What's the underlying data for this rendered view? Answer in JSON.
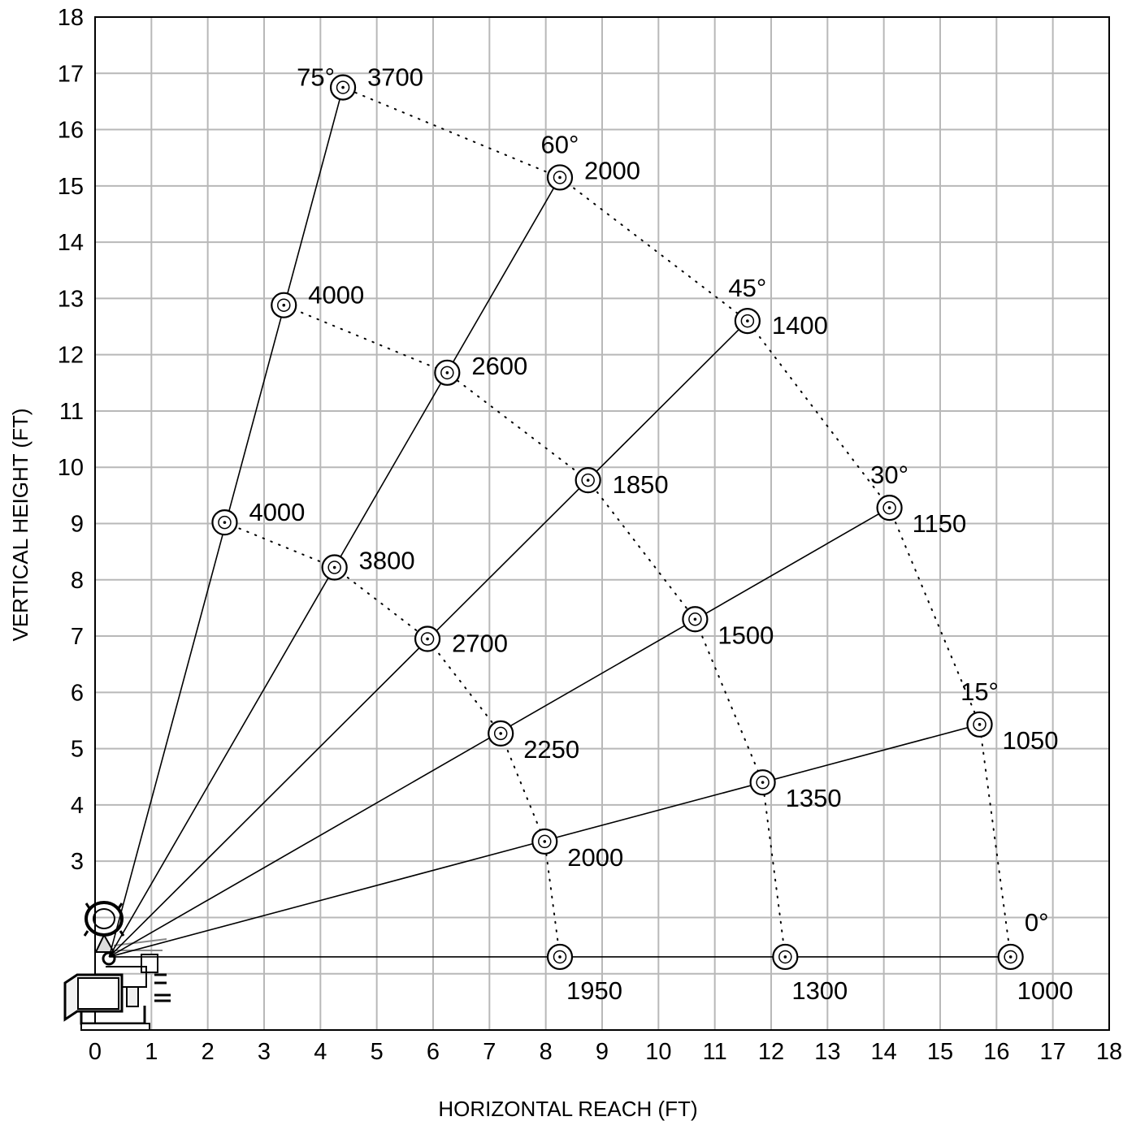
{
  "chart_data": {
    "type": "scatter",
    "title": "",
    "xlabel": "HORIZONTAL REACH (FT)",
    "ylabel": "VERTICAL HEIGHT (FT)",
    "xlim": [
      0,
      18
    ],
    "ylim": [
      0,
      18
    ],
    "x_ticks": [
      "0",
      "1",
      "2",
      "3",
      "4",
      "5",
      "6",
      "7",
      "8",
      "9",
      "10",
      "11",
      "12",
      "13",
      "14",
      "15",
      "16",
      "17",
      "18"
    ],
    "y_ticks": [
      "3",
      "4",
      "5",
      "6",
      "7",
      "8",
      "9",
      "10",
      "11",
      "12",
      "13",
      "14",
      "15",
      "16",
      "17",
      "18"
    ],
    "grid": true,
    "origin": {
      "x": 0.25,
      "y": 1.3
    },
    "booms": [
      {
        "angle": "0°",
        "points": [
          {
            "x": 8.25,
            "y": 1.3,
            "capacity": "1950"
          },
          {
            "x": 12.25,
            "y": 1.3,
            "capacity": "1300"
          },
          {
            "x": 16.25,
            "y": 1.3,
            "capacity": "1000"
          }
        ]
      },
      {
        "angle": "15°",
        "points": [
          {
            "x": 7.98,
            "y": 3.35,
            "capacity": "2000"
          },
          {
            "x": 11.85,
            "y": 4.4,
            "capacity": "1350"
          },
          {
            "x": 15.7,
            "y": 5.43,
            "capacity": "1050"
          }
        ]
      },
      {
        "angle": "30°",
        "points": [
          {
            "x": 7.2,
            "y": 5.27,
            "capacity": "2250"
          },
          {
            "x": 10.65,
            "y": 7.3,
            "capacity": "1500"
          },
          {
            "x": 14.1,
            "y": 9.28,
            "capacity": "1150"
          }
        ]
      },
      {
        "angle": "45°",
        "points": [
          {
            "x": 5.9,
            "y": 6.95,
            "capacity": "2700"
          },
          {
            "x": 8.75,
            "y": 9.77,
            "capacity": "1850"
          },
          {
            "x": 11.58,
            "y": 12.6,
            "capacity": "1400"
          }
        ]
      },
      {
        "angle": "60°",
        "points": [
          {
            "x": 4.25,
            "y": 8.22,
            "capacity": "3800"
          },
          {
            "x": 6.25,
            "y": 11.68,
            "capacity": "2600"
          },
          {
            "x": 8.25,
            "y": 15.15,
            "capacity": "2000"
          }
        ]
      },
      {
        "angle": "75°",
        "points": [
          {
            "x": 2.3,
            "y": 9.02,
            "capacity": "4000"
          },
          {
            "x": 3.35,
            "y": 12.88,
            "capacity": "4000"
          },
          {
            "x": 4.4,
            "y": 16.75,
            "capacity": "3700"
          }
        ]
      }
    ]
  }
}
